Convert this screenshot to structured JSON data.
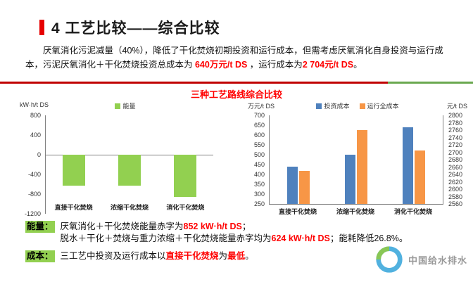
{
  "slide": {
    "title": "4  工艺比较——综合比较",
    "charts_title": "三种工艺路线综合比较"
  },
  "paragraph": {
    "a": "厌氧消化污泥减量（40%），降低了干化焚烧初期投资和运行成本，但需考虑厌氧消化自身投资与运行成本，污泥厌氧消化＋干化焚烧投资总成本为 ",
    "b": "640万元/t DS",
    "c": " ，运行成本为",
    "d": "2 704元/t DS",
    "e": "。"
  },
  "chart_data": [
    {
      "type": "bar",
      "ylabel": "kW·h/t DS",
      "ylim": [
        -1200,
        800
      ],
      "yticks": [
        800,
        400,
        0,
        -400,
        -800,
        -1200
      ],
      "categories": [
        "直接干化焚烧",
        "浓缩干化焚烧",
        "消化干化焚烧"
      ],
      "series": [
        {
          "name": "能量",
          "color": "#92d050",
          "values": [
            -624,
            -624,
            -852
          ]
        }
      ],
      "legend_position": "top",
      "grid": false
    },
    {
      "type": "bar",
      "ylabel_left": "万元/t DS",
      "ylabel_right": "元/t DS",
      "ylim_left": [
        250,
        700
      ],
      "ylim_right": [
        2560,
        2800
      ],
      "yticks_left": [
        700,
        650,
        600,
        550,
        500,
        450,
        400,
        350,
        300,
        250
      ],
      "yticks_right": [
        2800,
        2780,
        2760,
        2740,
        2720,
        2700,
        2680,
        2660,
        2640,
        2620,
        2600,
        2580,
        2560
      ],
      "categories": [
        "直接干化焚烧",
        "浓缩干化焚烧",
        "消化干化焚烧"
      ],
      "series": [
        {
          "name": "投资成本",
          "axis": "left",
          "color": "#4f81bd",
          "values": [
            440,
            500,
            640
          ]
        },
        {
          "name": "运行全成本",
          "axis": "right",
          "color": "#f79646",
          "values": [
            2650,
            2760,
            2704
          ]
        }
      ],
      "legend_position": "top",
      "grid": false
    }
  ],
  "notes": {
    "energy": {
      "label": "能量：",
      "line1_a": "厌氧消化＋干化焚烧能量赤字为",
      "line1_b": "852 kW·h/t DS",
      "line1_c": "；",
      "line2_a": "脱水＋干化＋焚烧与重力浓缩＋干化焚烧能量赤字均为",
      "line2_b": "624 kW·h/t DS",
      "line2_c": "；能耗降低26.8%。"
    },
    "cost": {
      "label": "成本：",
      "a": "三工艺中投资及运行成本以",
      "b": "直接干化焚烧",
      "c": "为",
      "d": "最低",
      "e": "。"
    }
  },
  "watermark": {
    "text": "中国给水排水"
  },
  "colors": {
    "accent_red": "#ff0000",
    "bar_green": "#92d050",
    "bar_blue": "#4f81bd",
    "bar_orange": "#f79646",
    "highlight_green": "#92d050"
  }
}
